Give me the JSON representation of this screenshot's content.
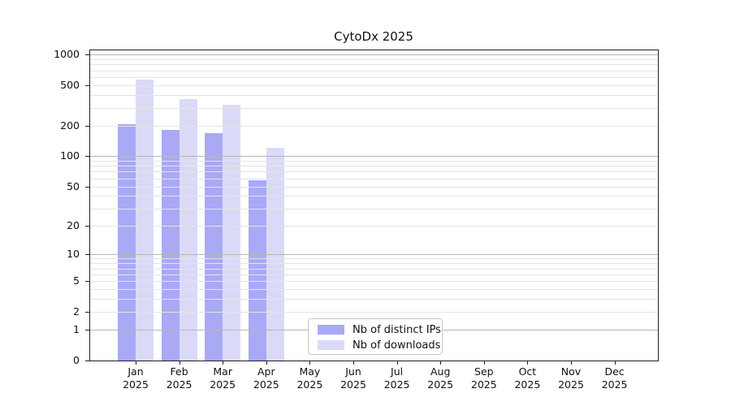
{
  "chart_data": {
    "type": "bar",
    "title": "CytoDx 2025",
    "months": [
      "Jan",
      "Feb",
      "Mar",
      "Apr",
      "May",
      "Jun",
      "Jul",
      "Aug",
      "Sep",
      "Oct",
      "Nov",
      "Dec"
    ],
    "year": "2025",
    "series": [
      {
        "name": "Nb of distinct IPs",
        "color": "#a9a9f6",
        "values": [
          205,
          180,
          168,
          58,
          null,
          null,
          null,
          null,
          null,
          null,
          null,
          null
        ]
      },
      {
        "name": "Nb of downloads",
        "color": "#dadaf8",
        "values": [
          565,
          365,
          320,
          120,
          null,
          null,
          null,
          null,
          null,
          null,
          null,
          null
        ]
      }
    ],
    "y_ticks": [
      0,
      1,
      2,
      5,
      10,
      20,
      50,
      100,
      200,
      500,
      1000
    ],
    "y_scale": "log10(1+value)",
    "ylim": [
      0,
      1000
    ],
    "grid": true,
    "legend_position": "lower-center-inside",
    "colors": {
      "major_grid": "#b6b6b6",
      "minor_grid": "#e4e4e4",
      "spine": "#1f1f1f"
    }
  }
}
